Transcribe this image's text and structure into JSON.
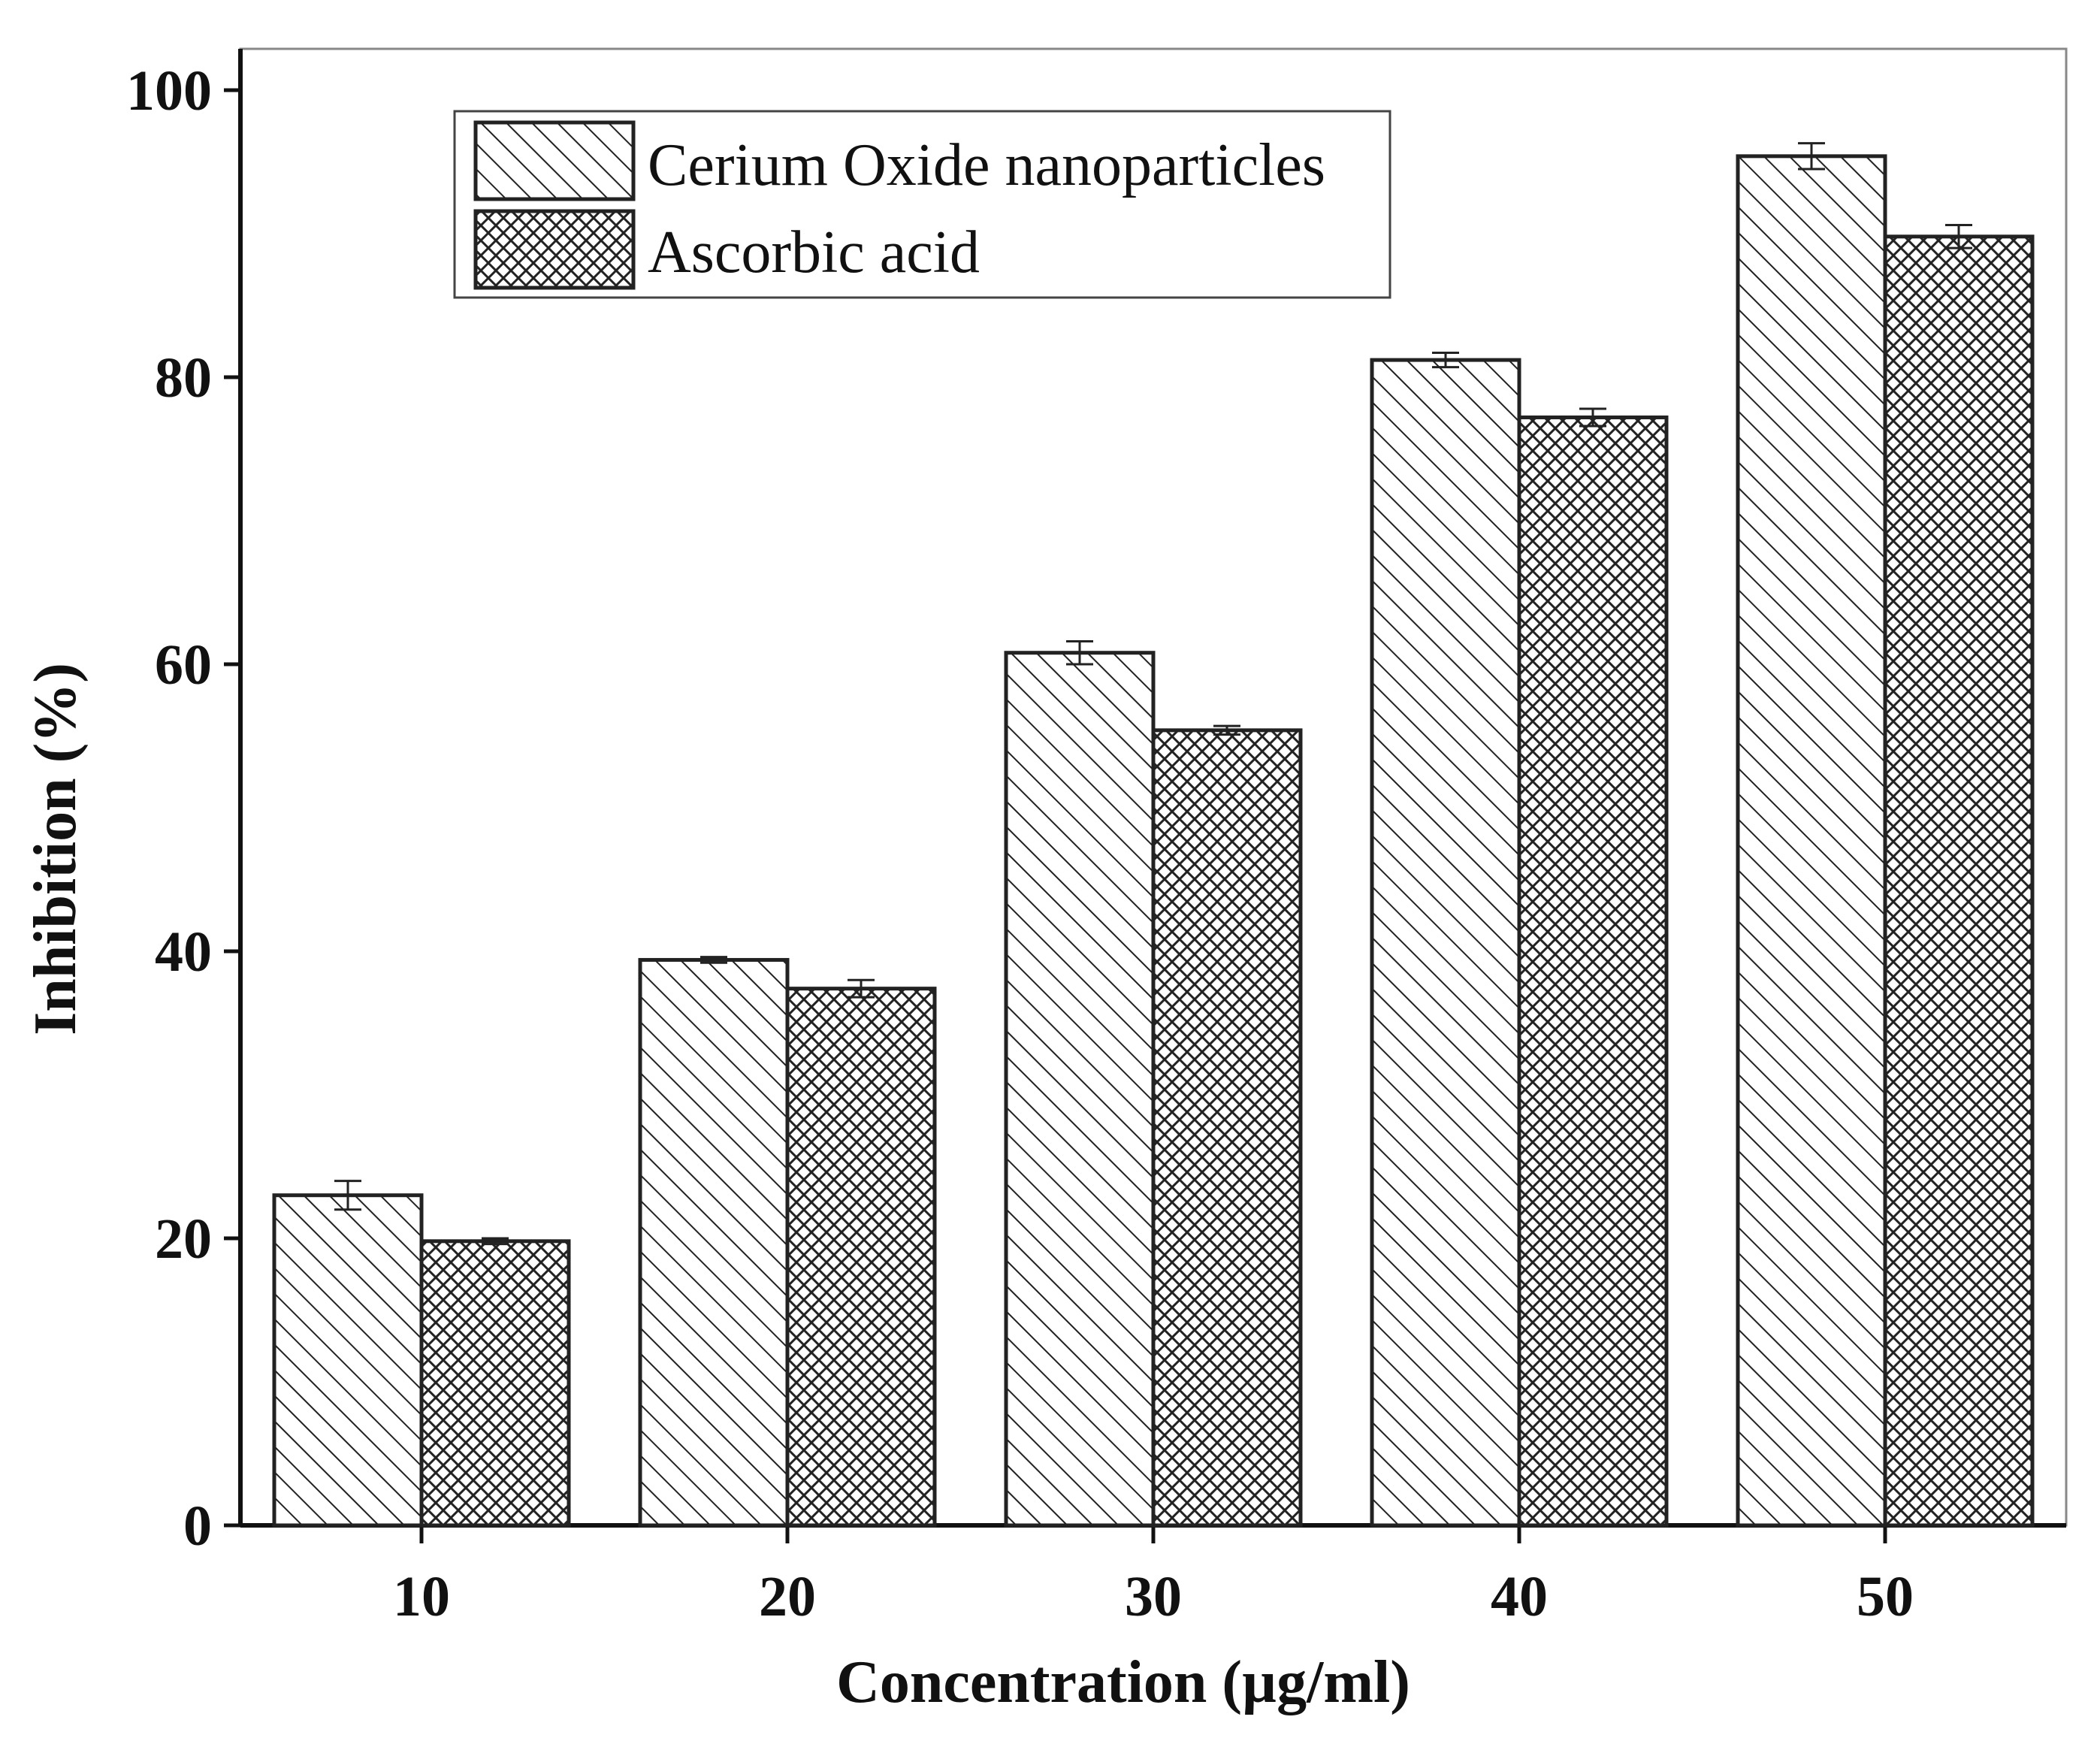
{
  "chart_data": {
    "type": "bar",
    "title": "",
    "xlabel": "Concentration (µg/ml)",
    "ylabel": "Inhibition (%)",
    "categories": [
      "10",
      "20",
      "30",
      "40",
      "50"
    ],
    "ylim": [
      0,
      100
    ],
    "yticks": [
      "0",
      "20",
      "40",
      "60",
      "80",
      "100"
    ],
    "grid": false,
    "legend_position": "top-left",
    "series": [
      {
        "name": "Cerium Oxide nanoparticles",
        "pattern": "diagonal-hatch",
        "values": [
          23.0,
          39.4,
          60.8,
          81.2,
          95.4
        ],
        "errors": [
          1.0,
          0.2,
          0.8,
          0.5,
          0.9
        ]
      },
      {
        "name": "Ascorbic acid",
        "pattern": "cross-hatch",
        "values": [
          19.8,
          37.4,
          55.4,
          77.2,
          89.8
        ],
        "errors": [
          0.2,
          0.6,
          0.3,
          0.6,
          0.8
        ]
      }
    ]
  },
  "colors": {
    "stroke": "#222222",
    "background": "#ffffff"
  }
}
